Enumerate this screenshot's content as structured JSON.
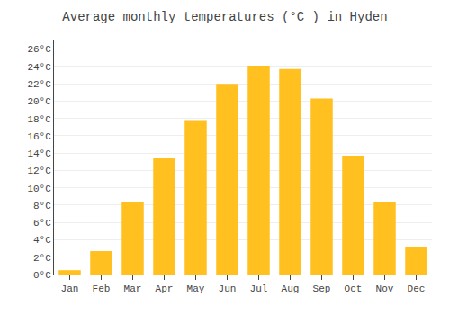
{
  "chart_data": {
    "type": "bar",
    "title": "Average monthly temperatures (°C ) in Hyden",
    "categories": [
      "Jan",
      "Feb",
      "Mar",
      "Apr",
      "May",
      "Jun",
      "Jul",
      "Aug",
      "Sep",
      "Oct",
      "Nov",
      "Dec"
    ],
    "values": [
      0.5,
      2.7,
      8.3,
      13.4,
      17.8,
      22.0,
      24.1,
      23.7,
      20.3,
      13.7,
      8.3,
      3.2
    ],
    "color": "#FFC020",
    "ylim": [
      0,
      27
    ],
    "yticks": [
      {
        "value": 0,
        "label": "0°C"
      },
      {
        "value": 2,
        "label": "2°C"
      },
      {
        "value": 4,
        "label": "4°C"
      },
      {
        "value": 6,
        "label": "6°C"
      },
      {
        "value": 8,
        "label": "8°C"
      },
      {
        "value": 10,
        "label": "10°C"
      },
      {
        "value": 12,
        "label": "12°C"
      },
      {
        "value": 14,
        "label": "14°C"
      },
      {
        "value": 16,
        "label": "16°C"
      },
      {
        "value": 18,
        "label": "18°C"
      },
      {
        "value": 20,
        "label": "20°C"
      },
      {
        "value": 22,
        "label": "22°C"
      },
      {
        "value": 24,
        "label": "24°C"
      },
      {
        "value": 26,
        "label": "26°C"
      }
    ],
    "grid": true
  }
}
